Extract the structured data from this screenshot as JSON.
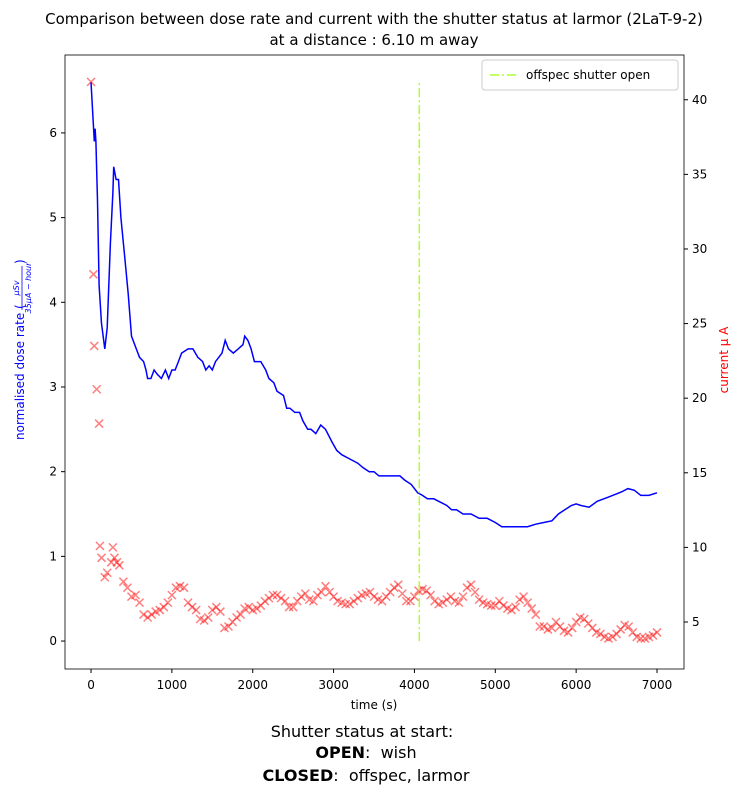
{
  "chart_data": {
    "type": "line",
    "title": [
      "Comparison between dose rate and current with the shutter status at larmor (2LaT-9-2)",
      "at a distance : 6.10 m away"
    ],
    "x_label": "time (s)",
    "y_label": {
      "text": "normalised dose rate (",
      "numerator": "μSv",
      "denominator": "35μA − hour",
      "close": ")"
    },
    "y2_label": "current μ A",
    "xlim": [
      -322,
      7334
    ],
    "xticks": [
      0,
      1000,
      2000,
      3000,
      4000,
      5000,
      6000,
      7000
    ],
    "ylim": [
      -0.33,
      6.92
    ],
    "yticks": [
      0,
      1,
      2,
      3,
      4,
      5,
      6
    ],
    "y2lim": [
      1.85,
      43.0
    ],
    "y2ticks": [
      5,
      10,
      15,
      20,
      25,
      30,
      35,
      40
    ],
    "legend": "upper right",
    "series": [
      {
        "type": "line",
        "color": "blue",
        "x": [
          0,
          40,
          50,
          60,
          80,
          100,
          130,
          170,
          200,
          240,
          270,
          280,
          310,
          340,
          370,
          420,
          460,
          500,
          560,
          600,
          650,
          680,
          700,
          740,
          780,
          820,
          870,
          920,
          960,
          1000,
          1040,
          1080,
          1120,
          1200,
          1260,
          1320,
          1380,
          1420,
          1460,
          1500,
          1540,
          1580,
          1620,
          1660,
          1700,
          1760,
          1820,
          1880,
          1900,
          1940,
          1980,
          2020,
          2100,
          2160,
          2200,
          2260,
          2300,
          2380,
          2420,
          2460,
          2520,
          2580,
          2620,
          2680,
          2720,
          2780,
          2840,
          2900,
          2980,
          3040,
          3100,
          3200,
          3300,
          3360,
          3440,
          3500,
          3560,
          3700,
          3820,
          3880,
          3960,
          4040,
          4100,
          4160,
          4240,
          4300,
          4400,
          4460,
          4520,
          4600,
          4700,
          4800,
          4900,
          5000,
          5080,
          5200,
          5300,
          5400,
          5500,
          5600,
          5700,
          5780,
          5860,
          5940,
          6000,
          6060,
          6160,
          6260,
          6400,
          6560,
          6640,
          6720,
          6800,
          6900,
          7000
        ],
        "values": [
          6.6,
          5.9,
          6.05,
          5.9,
          5.2,
          4.2,
          3.75,
          3.45,
          3.7,
          4.7,
          5.3,
          5.6,
          5.45,
          5.45,
          5.0,
          4.5,
          4.1,
          3.6,
          3.45,
          3.35,
          3.3,
          3.2,
          3.1,
          3.1,
          3.2,
          3.15,
          3.1,
          3.2,
          3.1,
          3.2,
          3.2,
          3.3,
          3.4,
          3.45,
          3.45,
          3.35,
          3.3,
          3.2,
          3.25,
          3.2,
          3.3,
          3.35,
          3.4,
          3.55,
          3.45,
          3.4,
          3.45,
          3.5,
          3.6,
          3.55,
          3.45,
          3.3,
          3.3,
          3.2,
          3.1,
          3.05,
          2.95,
          2.9,
          2.75,
          2.75,
          2.7,
          2.7,
          2.6,
          2.5,
          2.5,
          2.45,
          2.55,
          2.5,
          2.35,
          2.25,
          2.2,
          2.15,
          2.1,
          2.05,
          2.0,
          2.0,
          1.95,
          1.95,
          1.95,
          1.9,
          1.85,
          1.75,
          1.72,
          1.68,
          1.68,
          1.65,
          1.6,
          1.55,
          1.55,
          1.5,
          1.5,
          1.45,
          1.45,
          1.4,
          1.35,
          1.35,
          1.35,
          1.35,
          1.38,
          1.4,
          1.42,
          1.5,
          1.55,
          1.6,
          1.62,
          1.6,
          1.58,
          1.65,
          1.7,
          1.76,
          1.8,
          1.78,
          1.72,
          1.72,
          1.75
        ]
      },
      {
        "type": "scatter",
        "axis": "y2",
        "color": "red",
        "marker": "x",
        "alpha": 0.5,
        "x": [
          0,
          30,
          40,
          70,
          100,
          110,
          130,
          170,
          200,
          250,
          270,
          290,
          320,
          350,
          400,
          450,
          500,
          550,
          600,
          650,
          700,
          750,
          800,
          850,
          900,
          950,
          1000,
          1050,
          1100,
          1150,
          1200,
          1250,
          1300,
          1350,
          1400,
          1450,
          1500,
          1550,
          1600,
          1650,
          1700,
          1750,
          1800,
          1850,
          1900,
          1950,
          2000,
          2050,
          2100,
          2150,
          2200,
          2250,
          2300,
          2350,
          2400,
          2450,
          2500,
          2550,
          2600,
          2650,
          2700,
          2750,
          2800,
          2850,
          2900,
          2950,
          3000,
          3050,
          3100,
          3150,
          3200,
          3250,
          3300,
          3350,
          3400,
          3450,
          3500,
          3550,
          3600,
          3650,
          3700,
          3750,
          3800,
          3850,
          3900,
          3950,
          4000,
          4050,
          4100,
          4150,
          4200,
          4250,
          4300,
          4350,
          4400,
          4450,
          4500,
          4550,
          4600,
          4650,
          4700,
          4750,
          4800,
          4850,
          4900,
          4950,
          5000,
          5050,
          5100,
          5150,
          5200,
          5250,
          5300,
          5350,
          5400,
          5450,
          5500,
          5550,
          5600,
          5650,
          5700,
          5750,
          5800,
          5850,
          5900,
          5950,
          6000,
          6050,
          6100,
          6150,
          6200,
          6250,
          6300,
          6350,
          6400,
          6450,
          6500,
          6550,
          6600,
          6650,
          6700,
          6750,
          6800,
          6850,
          6900,
          6950,
          7000
        ],
        "values": [
          41.2,
          28.3,
          23.5,
          20.6,
          18.3,
          10.1,
          9.3,
          8.0,
          8.3,
          9.0,
          10.0,
          9.3,
          9.0,
          8.8,
          7.7,
          7.3,
          6.7,
          6.8,
          6.3,
          5.5,
          5.3,
          5.5,
          5.7,
          5.8,
          6.0,
          6.3,
          6.8,
          7.3,
          7.4,
          7.3,
          6.3,
          6.0,
          5.8,
          5.2,
          5.1,
          5.3,
          5.8,
          6.0,
          5.7,
          4.6,
          4.7,
          5.0,
          5.3,
          5.5,
          5.9,
          6.0,
          5.8,
          5.9,
          6.1,
          6.4,
          6.6,
          6.8,
          6.8,
          6.6,
          6.4,
          6.0,
          6.0,
          6.4,
          6.7,
          6.9,
          6.5,
          6.4,
          6.8,
          7.0,
          7.4,
          7.0,
          6.7,
          6.4,
          6.3,
          6.2,
          6.2,
          6.4,
          6.6,
          6.8,
          6.9,
          7.0,
          6.7,
          6.5,
          6.4,
          6.7,
          7.0,
          7.3,
          7.5,
          6.9,
          6.4,
          6.4,
          6.7,
          7.1,
          7.2,
          7.1,
          6.8,
          6.4,
          6.2,
          6.3,
          6.5,
          6.7,
          6.4,
          6.3,
          6.7,
          7.3,
          7.5,
          7.0,
          6.5,
          6.3,
          6.2,
          6.1,
          6.1,
          6.4,
          6.1,
          5.9,
          5.8,
          6.0,
          6.5,
          6.7,
          6.3,
          5.9,
          5.5,
          4.7,
          4.7,
          4.5,
          4.6,
          5.0,
          4.7,
          4.4,
          4.3,
          4.6,
          5.0,
          5.3,
          5.2,
          4.9,
          4.6,
          4.3,
          4.2,
          4.0,
          3.9,
          4.0,
          4.2,
          4.5,
          4.8,
          4.7,
          4.3,
          4.0,
          3.9,
          3.9,
          4.0,
          4.1,
          4.3
        ]
      },
      {
        "name": "offspec shutter open",
        "type": "vline",
        "color": "#adff2f",
        "style": "dashdot",
        "x": [
          4060,
          4060
        ],
        "values": [
          0,
          6.62
        ]
      }
    ],
    "footer": {
      "heading": "Shutter status at start:",
      "lines": [
        {
          "label": "OPEN",
          "text": ":  wish"
        },
        {
          "label": "CLOSED",
          "text": ":  offspec, larmor"
        }
      ]
    }
  }
}
